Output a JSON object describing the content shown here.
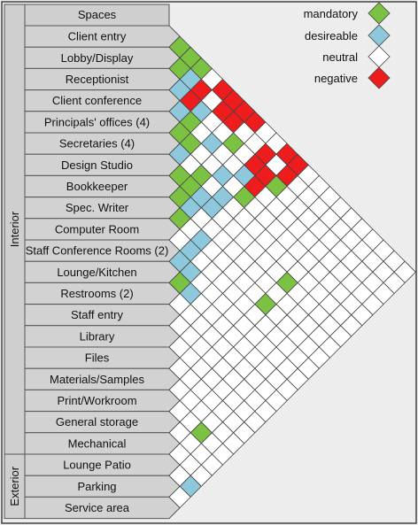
{
  "header": {
    "spaces_label": "Spaces"
  },
  "groups": [
    {
      "label": "Interior",
      "first": 0,
      "last": 19
    },
    {
      "label": "Exterior",
      "first": 20,
      "last": 22
    }
  ],
  "spaces": [
    "Client entry",
    "Lobby/Display",
    "Receptionist",
    "Client conference",
    "Principals' offices (4)",
    "Secretaries (4)",
    "Design Studio",
    "Bookkeeper",
    "Spec. Writer",
    "Computer Room",
    "Staff Conference Rooms (2)",
    "Lounge/Kitchen",
    "Restrooms (2)",
    "Staff entry",
    "Library",
    "Files",
    "Materials/Samples",
    "Print/Workroom",
    "General storage",
    "Mechanical",
    "Lounge Patio",
    "Parking",
    "Service area"
  ],
  "legend": [
    {
      "key": "mandatory",
      "label": "mandatory",
      "color": "#7cc242"
    },
    {
      "key": "desirable",
      "label": "desireable",
      "color": "#8ec8dc"
    },
    {
      "key": "neutral",
      "label": "neutral",
      "color": "#ffffff"
    },
    {
      "key": "negative",
      "label": "negative",
      "color": "#ee1c1c"
    }
  ],
  "relationships": [
    {
      "a": "Client entry",
      "b": "Lobby/Display",
      "type": "mandatory"
    },
    {
      "a": "Lobby/Display",
      "b": "Receptionist",
      "type": "mandatory"
    },
    {
      "a": "Client entry",
      "b": "Receptionist",
      "type": "mandatory"
    },
    {
      "a": "Receptionist",
      "b": "Client conference",
      "type": "desirable"
    },
    {
      "a": "Lobby/Display",
      "b": "Client conference",
      "type": "desirable"
    },
    {
      "a": "Client entry",
      "b": "Client conference",
      "type": "mandatory"
    },
    {
      "a": "Client conference",
      "b": "Principals' offices (4)",
      "type": "desirable"
    },
    {
      "a": "Receptionist",
      "b": "Principals' offices (4)",
      "type": "negative"
    },
    {
      "a": "Lobby/Display",
      "b": "Principals' offices (4)",
      "type": "negative"
    },
    {
      "a": "Principals' offices (4)",
      "b": "Secretaries (4)",
      "type": "mandatory"
    },
    {
      "a": "Client conference",
      "b": "Secretaries (4)",
      "type": "mandatory"
    },
    {
      "a": "Receptionist",
      "b": "Secretaries (4)",
      "type": "desirable"
    },
    {
      "a": "Client entry",
      "b": "Secretaries (4)",
      "type": "negative"
    },
    {
      "a": "Secretaries (4)",
      "b": "Design Studio",
      "type": "desirable"
    },
    {
      "a": "Principals' offices (4)",
      "b": "Design Studio",
      "type": "mandatory"
    },
    {
      "a": "Client conference",
      "b": "Bookkeeper",
      "type": "desirable"
    },
    {
      "a": "Receptionist",
      "b": "Spec. Writer",
      "type": "mandatory"
    },
    {
      "a": "Lobby/Display",
      "b": "Design Studio",
      "type": "negative"
    },
    {
      "a": "Client entry",
      "b": "Design Studio",
      "type": "negative"
    },
    {
      "a": "Design Studio",
      "b": "Bookkeeper",
      "type": "mandatory"
    },
    {
      "a": "Client entry",
      "b": "Bookkeeper",
      "type": "negative"
    },
    {
      "a": "Lobby/Display",
      "b": "Bookkeeper",
      "type": "negative"
    },
    {
      "a": "Client entry",
      "b": "Spec. Writer",
      "type": "negative"
    },
    {
      "a": "Bookkeeper",
      "b": "Spec. Writer",
      "type": "mandatory"
    },
    {
      "a": "Design Studio",
      "b": "Spec. Writer",
      "type": "mandatory"
    },
    {
      "a": "Secretaries (4)",
      "b": "Spec. Writer",
      "type": "mandatory"
    },
    {
      "a": "Spec. Writer",
      "b": "Computer Room",
      "type": "mandatory"
    },
    {
      "a": "Design Studio",
      "b": "Computer Room",
      "type": "desirable"
    },
    {
      "a": "Principals' offices (4)",
      "b": "Computer Room",
      "type": "desirable"
    },
    {
      "a": "Bookkeeper",
      "b": "Computer Room",
      "type": "desirable"
    },
    {
      "a": "Design Studio",
      "b": "Staff Conference Rooms (2)",
      "type": "desirable"
    },
    {
      "a": "Secretaries (4)",
      "b": "Staff Conference Rooms (2)",
      "type": "desirable"
    },
    {
      "a": "Client conference",
      "b": "Staff Conference Rooms (2)",
      "type": "desirable"
    },
    {
      "a": "Lounge/Kitchen",
      "b": "Restrooms (2)",
      "type": "mandatory"
    },
    {
      "a": "Staff Conference Rooms (2)",
      "b": "Lounge/Kitchen",
      "type": "desirable"
    },
    {
      "a": "Computer Room",
      "b": "Lounge/Kitchen",
      "type": "desirable"
    },
    {
      "a": "Spec. Writer",
      "b": "Lounge/Kitchen",
      "type": "desirable"
    },
    {
      "a": "Principals' offices (4)",
      "b": "Lounge/Kitchen",
      "type": "mandatory"
    },
    {
      "a": "Client conference",
      "b": "Lounge/Kitchen",
      "type": "negative"
    },
    {
      "a": "Client entry",
      "b": "Lounge/Kitchen",
      "type": "negative"
    },
    {
      "a": "Receptionist",
      "b": "Lounge/Kitchen",
      "type": "negative"
    },
    {
      "a": "Receptionist",
      "b": "Staff Conference Rooms (2)",
      "type": "negative"
    },
    {
      "a": "Lobby/Display",
      "b": "Staff Conference Rooms (2)",
      "type": "negative"
    },
    {
      "a": "Receptionist",
      "b": "Restrooms (2)",
      "type": "mandatory"
    },
    {
      "a": "Lobby/Display",
      "b": "Restrooms (2)",
      "type": "negative"
    },
    {
      "a": "Client entry",
      "b": "Restrooms (2)",
      "type": "negative"
    },
    {
      "a": "Staff Conference Rooms (2)",
      "b": "Restrooms (2)",
      "type": "desirable"
    },
    {
      "a": "Lounge/Kitchen",
      "b": "Staff entry",
      "type": "desirable"
    },
    {
      "a": "Spec. Writer",
      "b": "Print/Workroom",
      "type": "mandatory"
    },
    {
      "a": "Design Studio",
      "b": "Print/Workroom",
      "type": "mandatory"
    },
    {
      "a": "Print/Workroom",
      "b": "Lounge Patio",
      "type": "mandatory"
    },
    {
      "a": "Lounge Patio",
      "b": "Service area",
      "type": "desirable"
    }
  ]
}
